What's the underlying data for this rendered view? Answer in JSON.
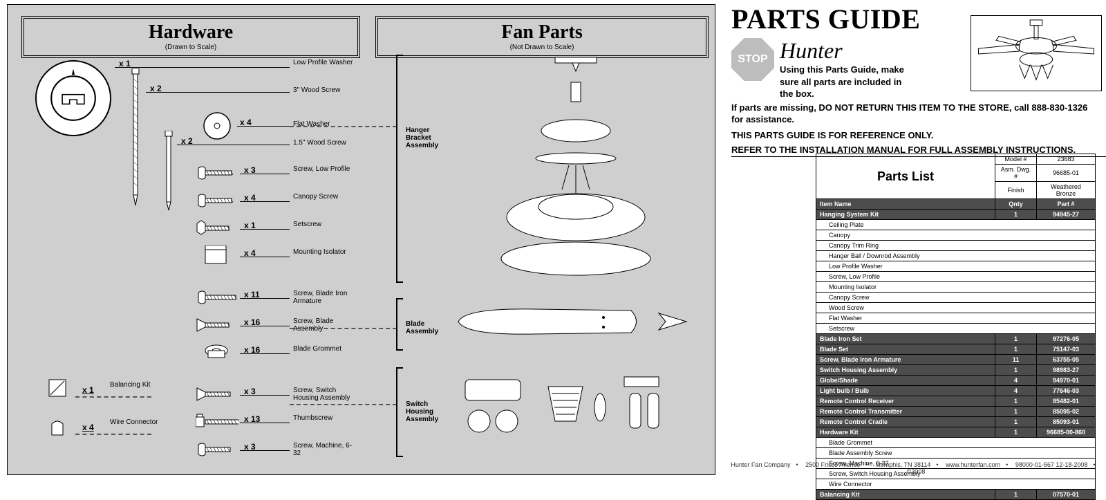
{
  "sections": {
    "hardware": {
      "title": "Hardware",
      "subtitle": "(Drawn to Scale)"
    },
    "fanparts": {
      "title": "Fan Parts",
      "subtitle": "(Not Drawn to Scale)"
    }
  },
  "hardware_items": [
    {
      "qty": "x 1",
      "label": "Low Profile Washer"
    },
    {
      "qty": "x 2",
      "label": "3\" Wood Screw"
    },
    {
      "qty": "x 4",
      "label": "Flat Washer"
    },
    {
      "qty": "x 2",
      "label": "1.5\" Wood Screw"
    },
    {
      "qty": "x 3",
      "label": "Screw, Low Profile"
    },
    {
      "qty": "x 4",
      "label": "Canopy Screw"
    },
    {
      "qty": "x 1",
      "label": "Setscrew"
    },
    {
      "qty": "x 4",
      "label": "Mounting Isolator"
    },
    {
      "qty": "x 11",
      "label": "Screw, Blade Iron Armature"
    },
    {
      "qty": "x 16",
      "label": "Screw, Blade Assembly"
    },
    {
      "qty": "x 16",
      "label": "Blade Grommet"
    },
    {
      "qty": "x 3",
      "label": "Screw, Switch Housing Assembly"
    },
    {
      "qty": "x 13",
      "label": "Thumbscrew"
    },
    {
      "qty": "x 3",
      "label": "Screw, Machine, 6-32"
    }
  ],
  "side_items": {
    "balancing": {
      "qty": "x 1",
      "label": "Balancing Kit"
    },
    "wire": {
      "qty": "x 4",
      "label": "Wire Connector"
    }
  },
  "fan_groups": {
    "hanger": "Hanger Bracket Assembly",
    "blade": "Blade Assembly",
    "switch": "Switch Housing Assembly"
  },
  "guide": {
    "title": "PARTS GUIDE",
    "brand": "Hunter",
    "stop": "STOP",
    "intro1": "Using this Parts Guide, make sure all parts are included in the box.",
    "intro2": "If parts are missing, DO NOT RETURN THIS ITEM TO THE STORE, call 888-830-1326 for assistance.",
    "ref1": "THIS PARTS GUIDE IS FOR REFERENCE ONLY.",
    "ref2": "REFER TO THE INSTALLATION MANUAL FOR FULL ASSEMBLY INSTRUCTIONS."
  },
  "parts_list": {
    "header": "Parts List",
    "info": [
      {
        "label": "Model #",
        "value": "23683"
      },
      {
        "label": "Asm. Dwg. #",
        "value": "96685-01"
      },
      {
        "label": "Finish",
        "value": "Weathered Bronze"
      }
    ],
    "cols": {
      "name": "Item Name",
      "qty": "Qnty",
      "part": "Part #"
    },
    "rows": [
      {
        "name": "Hanging System Kit",
        "qty": "1",
        "part": "94945-27",
        "dark": true
      },
      {
        "name": "Ceiling Plate",
        "sub": true
      },
      {
        "name": "Canopy",
        "sub": true
      },
      {
        "name": "Canopy Trim Ring",
        "sub": true
      },
      {
        "name": "Hanger Ball / Downrod Assembly",
        "sub": true
      },
      {
        "name": "Low Profile Washer",
        "sub": true
      },
      {
        "name": "Screw, Low Profile",
        "sub": true
      },
      {
        "name": "Mounting Isolator",
        "sub": true
      },
      {
        "name": "Canopy Screw",
        "sub": true
      },
      {
        "name": "Wood Screw",
        "sub": true
      },
      {
        "name": "Flat Washer",
        "sub": true
      },
      {
        "name": "Setscrew",
        "sub": true
      },
      {
        "name": "Blade Iron Set",
        "qty": "1",
        "part": "97276-05",
        "dark": true
      },
      {
        "name": "Blade Set",
        "qty": "1",
        "part": "75147-03",
        "dark": true
      },
      {
        "name": "Screw, Blade Iron Armature",
        "qty": "11",
        "part": "63755-05",
        "dark": true
      },
      {
        "name": "Switch Housing Assembly",
        "qty": "1",
        "part": "98983-27",
        "dark": true
      },
      {
        "name": "Globe/Shade",
        "qty": "4",
        "part": "94970-01",
        "dark": true
      },
      {
        "name": "Light bulb / Bulb",
        "qty": "4",
        "part": "77646-03",
        "dark": true
      },
      {
        "name": "Remote Control Receiver",
        "qty": "1",
        "part": "85482-01",
        "dark": true
      },
      {
        "name": "Remote Control Transmitter",
        "qty": "1",
        "part": "85095-02",
        "dark": true
      },
      {
        "name": "Remote Control Cradle",
        "qty": "1",
        "part": "85093-01",
        "dark": true
      },
      {
        "name": "Hardware Kit",
        "qty": "1",
        "part": "96685-00-860",
        "dark": true
      },
      {
        "name": "Blade Grommet",
        "sub": true
      },
      {
        "name": "Blade Assembly Screw",
        "sub": true
      },
      {
        "name": "Screw, Machine, 6-32",
        "sub": true
      },
      {
        "name": "Screw, Switch Housing Assembly",
        "sub": true
      },
      {
        "name": "Wire Connector",
        "sub": true
      },
      {
        "name": "Balancing Kit",
        "qty": "1",
        "part": "07570-01",
        "dark": true
      }
    ]
  },
  "footer": {
    "company": "Hunter Fan Company",
    "addr1": "2500 Frisco Avenue",
    "addr2": "Memphis, TN 38114",
    "web": "www.hunterfan.com",
    "doc": "98000-01-567  12-18-2008",
    "copy": "©2008"
  },
  "colors": {
    "panel_bg": "#cfcfcf",
    "dark_row": "#4d4d4d",
    "text_white": "#ffffff"
  }
}
